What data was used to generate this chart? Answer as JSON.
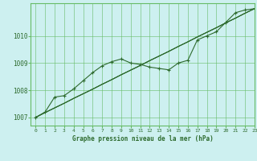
{
  "title": "Graphe pression niveau de la mer (hPa)",
  "background_color": "#cdf0f0",
  "plot_bg_color": "#cdf0f0",
  "line_color": "#2d6a2d",
  "grid_color": "#66bb66",
  "text_color": "#2d6a2d",
  "xlim": [
    -0.5,
    23
  ],
  "ylim": [
    1006.7,
    1011.2
  ],
  "yticks": [
    1007,
    1008,
    1009,
    1010
  ],
  "xticks": [
    0,
    1,
    2,
    3,
    4,
    5,
    6,
    7,
    8,
    9,
    10,
    11,
    12,
    13,
    14,
    15,
    16,
    17,
    18,
    19,
    20,
    21,
    22,
    23
  ],
  "series_linear": [
    [
      1007.0,
      1007.18,
      1007.35,
      1007.52,
      1007.7,
      1007.87,
      1008.04,
      1008.22,
      1008.39,
      1008.57,
      1008.74,
      1008.91,
      1009.09,
      1009.26,
      1009.43,
      1009.61,
      1009.78,
      1009.96,
      1010.13,
      1010.3,
      1010.48,
      1010.65,
      1010.83,
      1011.0
    ],
    [
      1007.0,
      1007.18,
      1007.35,
      1007.52,
      1007.7,
      1007.87,
      1008.04,
      1008.22,
      1008.39,
      1008.57,
      1008.74,
      1008.91,
      1009.09,
      1009.26,
      1009.43,
      1009.61,
      1009.78,
      1009.96,
      1010.13,
      1010.3,
      1010.48,
      1010.65,
      1010.83,
      1011.0
    ],
    [
      1007.0,
      1007.18,
      1007.35,
      1007.52,
      1007.7,
      1007.87,
      1008.04,
      1008.22,
      1008.39,
      1008.57,
      1008.74,
      1008.91,
      1009.09,
      1009.26,
      1009.43,
      1009.61,
      1009.78,
      1009.96,
      1010.13,
      1010.3,
      1010.48,
      1010.65,
      1010.83,
      1011.0
    ]
  ],
  "series_curved": [
    1007.0,
    1007.2,
    1007.75,
    1007.8,
    1008.05,
    1008.35,
    1008.65,
    1008.9,
    1009.05,
    1009.15,
    1009.0,
    1008.95,
    1008.85,
    1008.8,
    1008.75,
    1009.0,
    1009.1,
    1009.85,
    1010.0,
    1010.15,
    1010.5,
    1010.85,
    1010.95,
    1011.0
  ]
}
